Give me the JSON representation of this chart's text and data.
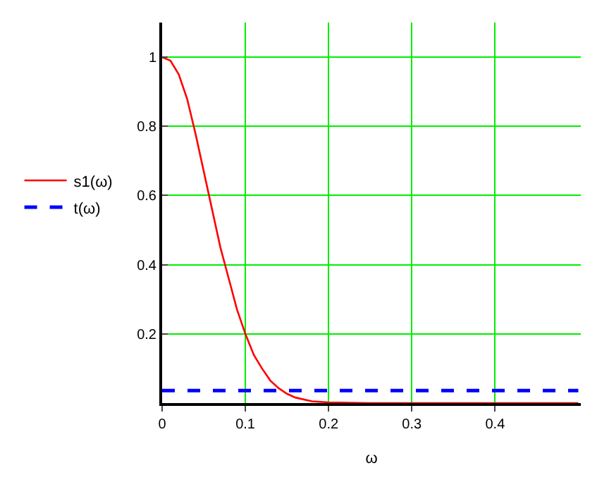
{
  "chart_data": {
    "type": "line",
    "xlabel": "ω",
    "series": [
      {
        "name": "s1(ω)",
        "color": "#ff0000",
        "line_style": "solid",
        "x": [
          0,
          0.01,
          0.02,
          0.03,
          0.04,
          0.05,
          0.06,
          0.07,
          0.08,
          0.09,
          0.1,
          0.11,
          0.12,
          0.13,
          0.14,
          0.15,
          0.16,
          0.18,
          0.2,
          0.25,
          0.5
        ],
        "values": [
          1,
          0.99,
          0.95,
          0.88,
          0.78,
          0.67,
          0.56,
          0.45,
          0.36,
          0.27,
          0.2,
          0.14,
          0.1,
          0.065,
          0.043,
          0.027,
          0.016,
          0.005,
          0.002,
          0,
          0
        ]
      },
      {
        "name": "t(ω)",
        "color": "#0000ff",
        "line_style": "dashed",
        "x": [
          0,
          0.5
        ],
        "values": [
          0.036,
          0.036
        ]
      }
    ],
    "xlim": [
      0,
      0.503
    ],
    "ylim": [
      0,
      1.1
    ],
    "xticks": [
      0,
      0.1,
      0.2,
      0.3,
      0.4
    ],
    "yticks": [
      0.2,
      0.4,
      0.6,
      0.8,
      1
    ],
    "grid": true,
    "legend": "left",
    "marker": "none"
  }
}
